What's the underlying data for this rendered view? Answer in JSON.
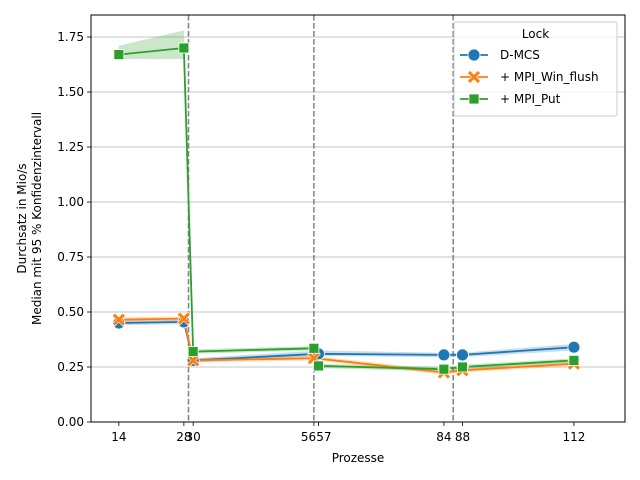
{
  "chart_data": {
    "type": "line",
    "xlabel": "Prozesse",
    "ylabel_lines": [
      "Durchsatz in Mio/s",
      "Median mit 95 % Konfidenzintervall"
    ],
    "xlim": [
      8,
      123
    ],
    "ylim": [
      0,
      1.85
    ],
    "x_ticks": [
      14,
      28,
      30,
      56,
      57,
      84,
      88,
      112
    ],
    "x_tick_labels": [
      {
        "x": 14,
        "label": "14"
      },
      {
        "x": 28,
        "label": "28"
      },
      {
        "x": 30,
        "label": "30"
      },
      {
        "x": 56.5,
        "label": "5657"
      },
      {
        "x": 84,
        "label": "84"
      },
      {
        "x": 88,
        "label": "88"
      },
      {
        "x": 112,
        "label": "112"
      }
    ],
    "y_ticks": [
      0.0,
      0.25,
      0.5,
      0.75,
      1.0,
      1.25,
      1.5,
      1.75
    ],
    "y_tick_labels": [
      "0.00",
      "0.25",
      "0.50",
      "0.75",
      "1.00",
      "1.25",
      "1.50",
      "1.75"
    ],
    "grid": "horizontal",
    "vlines": [
      29,
      56,
      86
    ],
    "legend": {
      "title": "Lock",
      "placement": "top-right"
    },
    "series": [
      {
        "name": "D-MCS",
        "color": "#1f77b4",
        "marker": "circle",
        "x": [
          14,
          28,
          30,
          57,
          84,
          88,
          112
        ],
        "y": [
          0.45,
          0.455,
          0.28,
          0.31,
          0.305,
          0.305,
          0.34
        ],
        "ci_low": [
          0.44,
          0.445,
          0.27,
          0.3,
          0.295,
          0.295,
          0.325
        ],
        "ci_high": [
          0.46,
          0.465,
          0.29,
          0.325,
          0.315,
          0.315,
          0.355
        ]
      },
      {
        "name": "+ MPI_Win_flush",
        "color": "#ff7f0e",
        "marker": "x",
        "x": [
          14,
          28,
          30,
          56,
          84,
          88,
          112
        ],
        "y": [
          0.465,
          0.47,
          0.28,
          0.29,
          0.225,
          0.235,
          0.265
        ],
        "ci_low": [
          0.455,
          0.46,
          0.27,
          0.28,
          0.215,
          0.225,
          0.255
        ],
        "ci_high": [
          0.475,
          0.48,
          0.29,
          0.3,
          0.235,
          0.245,
          0.275
        ]
      },
      {
        "name": "+ MPI_Put",
        "color": "#2ca02c",
        "marker": "square",
        "x": [
          14,
          28,
          30,
          56,
          57,
          84,
          88,
          112
        ],
        "y": [
          1.67,
          1.7,
          0.32,
          0.335,
          0.255,
          0.24,
          0.25,
          0.28
        ],
        "ci_low": [
          1.65,
          1.65,
          0.31,
          0.325,
          0.245,
          0.23,
          0.24,
          0.27
        ],
        "ci_high": [
          1.71,
          1.78,
          0.33,
          0.345,
          0.265,
          0.25,
          0.26,
          0.29
        ]
      }
    ]
  }
}
